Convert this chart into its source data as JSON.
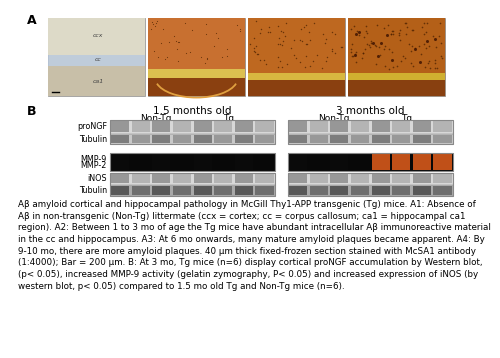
{
  "bg": "#ffffff",
  "panel_A_label": "A",
  "panel_B_label": "B",
  "caption": "Aβ amyloid cortical and hippocampal pathology in McGill Thy1-APP transgenic (Tg) mice. A1: Absence of\nAβ in non-transgenic (Non-Tg) littermate (ccx = cortex; cc = corpus callosum; ca1 = hippocampal ca1\nregion). A2: Between 1 to 3 mo of age the Tg mice have abundant intracellular Aβ immunoreactive material\nin the cc and hippocampus. A3: At 6 mo onwards, many mature amyloid plaques became apparent. A4: By\n9-10 mo, there are more amyloid plaques. 40 μm thick fixed-frozen section stained with McSA1 antibody\n(1:4000); Bar = 200 μm. B: At 3 mo, Tg mice (n=6) display cortical proNGF accumulation by Western blot,\n(p< 0.05), increased MMP-9 activity (gelatin zymography, P< 0.05) and increased expression of iNOS (by\nwestern blot, p< 0.05) compared to 1.5 mo old Tg and Non-Tg mice (n=6).",
  "caption_fontsize": 6.3,
  "header_15": "1.5 months old",
  "header_3": "3 months old",
  "nonTg": "Non-Tg",
  "Tg": "Tg",
  "proNGF": "proNGF",
  "Tubulin": "Tubulin",
  "MMP9": "MMP-9",
  "MMP2": "MMP-2",
  "iNOS": "iNOS",
  "img1_bg": "#e8e5d5",
  "img1_ccx": "#dddac8",
  "img1_cc": "#b8c8dc",
  "img1_ca1": "#c8bfa8",
  "img2_upper": "#c87030",
  "img2_cc": "#dcc050",
  "img2_lower": "#8a4010",
  "img2_bg": "#c87030",
  "img3_upper": "#be6820",
  "img3_cc": "#d8b840",
  "img3_lower": "#8a4010",
  "img4_upper": "#b46018",
  "img4_cc": "#d0b030",
  "img4_lower": "#884010",
  "wb_gray_bg": "#d8d8d8",
  "wb_gray_band": "#909090",
  "wb_gray_band2": "#b0b0b0",
  "wb_dark_bg": "#c8c8c8",
  "wb_dark_band": "#707070",
  "wb_dark_band2": "#909090",
  "wb_black_bg": "#080808",
  "wb_black_band": "#060606",
  "wb_orange": "#c05018",
  "wb_tubulin2_bg": "#a8a8a8",
  "wb_tubulin2_band": "#505050",
  "wb_tubulin2_band2": "#686868"
}
